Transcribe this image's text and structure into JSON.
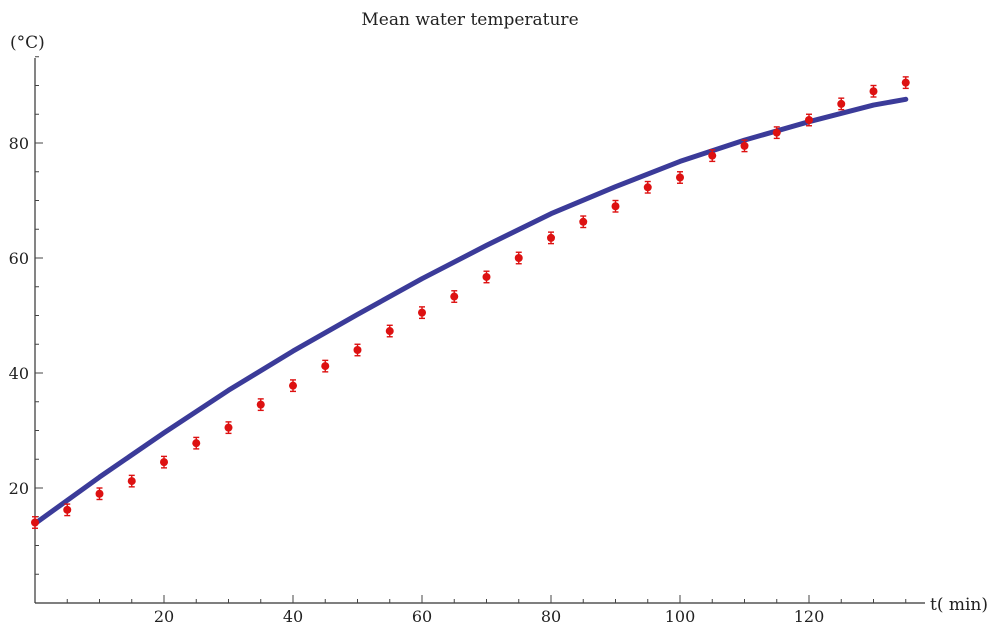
{
  "chart_data": {
    "type": "scatter",
    "title": "Mean water temperature",
    "xlabel": "t( min)",
    "ylabel": "(°C)",
    "xlim": [
      0,
      135
    ],
    "ylim": [
      0,
      95
    ],
    "x_ticks": [
      20,
      40,
      60,
      80,
      100,
      120
    ],
    "y_ticks": [
      20,
      40,
      60,
      80
    ],
    "grid": false,
    "colors": {
      "points": "#dd1111",
      "line": "#3b3b99"
    },
    "series": [
      {
        "kind": "points_with_error",
        "x": [
          0,
          5,
          10,
          15,
          20,
          25,
          30,
          35,
          40,
          45,
          50,
          55,
          60,
          65,
          70,
          75,
          80,
          85,
          90,
          95,
          100,
          105,
          110,
          115,
          120,
          125,
          130,
          135
        ],
        "y": [
          14.0,
          16.2,
          19.0,
          21.2,
          24.5,
          27.8,
          30.5,
          34.5,
          37.8,
          41.2,
          44.0,
          47.3,
          50.5,
          53.3,
          56.7,
          60.0,
          63.5,
          66.3,
          69.0,
          72.3,
          74.0,
          77.8,
          79.5,
          81.8,
          84.0,
          86.8,
          89.0,
          90.5
        ],
        "error": 1.0
      },
      {
        "kind": "line",
        "x": [
          0,
          10,
          20,
          30,
          40,
          50,
          60,
          70,
          80,
          90,
          100,
          110,
          120,
          130,
          135
        ],
        "y": [
          13.8,
          21.9,
          29.6,
          37.0,
          43.8,
          50.2,
          56.4,
          62.2,
          67.7,
          72.4,
          76.8,
          80.5,
          83.7,
          86.6,
          87.6
        ]
      }
    ]
  }
}
